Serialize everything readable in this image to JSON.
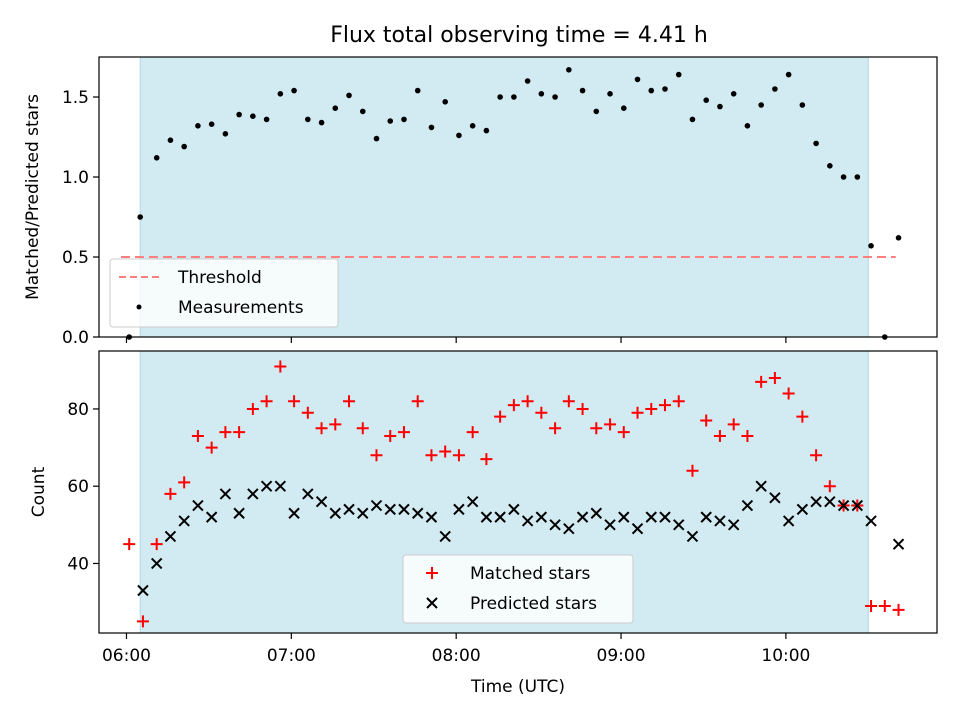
{
  "figure": {
    "title": "Flux total observing time = 4.41 h"
  },
  "colors": {
    "shade": "#add8e6",
    "matched": "#ff0000",
    "predicted": "#000000",
    "threshold": "#ff7f7f",
    "measure": "#000000"
  },
  "chart_data": [
    {
      "type": "scatter",
      "panel": "top",
      "ylabel": "Matched/Predicted stars",
      "ylim": [
        0,
        1.75
      ],
      "yticks": [
        {
          "v": 0,
          "label": "0.0"
        },
        {
          "v": 0.5,
          "label": "0.5"
        },
        {
          "v": 1.0,
          "label": "1.0"
        },
        {
          "v": 1.5,
          "label": "1.5"
        }
      ],
      "xlim": [
        "05:50",
        "10:55"
      ],
      "shaded_span": [
        "06:05",
        "10:30"
      ],
      "threshold": {
        "name": "Threshold",
        "value": 0.5,
        "x_range": [
          "05:58",
          "10:40"
        ]
      },
      "legend": {
        "placement": "lower-left",
        "entries": [
          "Threshold",
          "Measurements"
        ]
      },
      "series": [
        {
          "name": "Measurements",
          "x": [
            "06:01",
            "06:05",
            "06:11",
            "06:16",
            "06:21",
            "06:26",
            "06:31",
            "06:36",
            "06:41",
            "06:46",
            "06:51",
            "06:56",
            "07:01",
            "07:06",
            "07:11",
            "07:16",
            "07:21",
            "07:26",
            "07:31",
            "07:36",
            "07:41",
            "07:46",
            "07:51",
            "07:56",
            "08:01",
            "08:06",
            "08:11",
            "08:16",
            "08:21",
            "08:26",
            "08:31",
            "08:36",
            "08:41",
            "08:46",
            "08:51",
            "08:56",
            "09:01",
            "09:06",
            "09:11",
            "09:16",
            "09:21",
            "09:26",
            "09:31",
            "09:36",
            "09:41",
            "09:46",
            "09:51",
            "09:56",
            "10:01",
            "10:06",
            "10:11",
            "10:16",
            "10:21",
            "10:26",
            "10:31",
            "10:36",
            "10:41"
          ],
          "y": [
            0.0,
            0.75,
            1.12,
            1.23,
            1.19,
            1.32,
            1.33,
            1.27,
            1.39,
            1.38,
            1.36,
            1.52,
            1.54,
            1.36,
            1.34,
            1.43,
            1.51,
            1.41,
            1.24,
            1.35,
            1.36,
            1.54,
            1.31,
            1.47,
            1.26,
            1.32,
            1.29,
            1.5,
            1.5,
            1.6,
            1.52,
            1.5,
            1.67,
            1.54,
            1.41,
            1.52,
            1.43,
            1.61,
            1.54,
            1.55,
            1.64,
            1.36,
            1.48,
            1.44,
            1.52,
            1.32,
            1.45,
            1.55,
            1.64,
            1.45,
            1.21,
            1.07,
            1.0,
            1.0,
            0.57,
            0.0,
            0.62
          ]
        }
      ]
    },
    {
      "type": "scatter",
      "panel": "bottom",
      "ylabel": "Count",
      "xlabel": "Time (UTC)",
      "ylim": [
        22,
        95
      ],
      "yticks": [
        {
          "v": 40,
          "label": "40"
        },
        {
          "v": 60,
          "label": "60"
        },
        {
          "v": 80,
          "label": "80"
        }
      ],
      "xlim": [
        "05:50",
        "10:55"
      ],
      "xticks": [
        "06:00",
        "07:00",
        "08:00",
        "09:00",
        "10:00"
      ],
      "shaded_span": [
        "06:05",
        "10:30"
      ],
      "legend": {
        "placement": "lower-center",
        "entries": [
          "Matched stars",
          "Predicted stars"
        ]
      },
      "series": [
        {
          "name": "Matched stars",
          "marker": "plus",
          "x": [
            "06:01",
            "06:06",
            "06:11",
            "06:16",
            "06:21",
            "06:26",
            "06:31",
            "06:36",
            "06:41",
            "06:46",
            "06:51",
            "06:56",
            "07:01",
            "07:06",
            "07:11",
            "07:16",
            "07:21",
            "07:26",
            "07:31",
            "07:36",
            "07:41",
            "07:46",
            "07:51",
            "07:56",
            "08:01",
            "08:06",
            "08:11",
            "08:16",
            "08:21",
            "08:26",
            "08:31",
            "08:36",
            "08:41",
            "08:46",
            "08:51",
            "08:56",
            "09:01",
            "09:06",
            "09:11",
            "09:16",
            "09:21",
            "09:26",
            "09:31",
            "09:36",
            "09:41",
            "09:46",
            "09:51",
            "09:56",
            "10:01",
            "10:06",
            "10:11",
            "10:16",
            "10:21",
            "10:26",
            "10:31",
            "10:36",
            "10:41"
          ],
          "y": [
            45,
            25,
            45,
            58,
            61,
            73,
            70,
            74,
            74,
            80,
            82,
            91,
            82,
            79,
            75,
            76,
            82,
            75,
            68,
            73,
            74,
            82,
            68,
            69,
            68,
            74,
            67,
            78,
            81,
            82,
            79,
            75,
            82,
            80,
            75,
            76,
            74,
            79,
            80,
            81,
            82,
            64,
            77,
            73,
            76,
            73,
            87,
            88,
            84,
            78,
            68,
            60,
            55,
            55,
            29,
            29,
            28
          ]
        },
        {
          "name": "Predicted stars",
          "marker": "x",
          "x": [
            "06:06",
            "06:11",
            "06:16",
            "06:21",
            "06:26",
            "06:31",
            "06:36",
            "06:41",
            "06:46",
            "06:51",
            "06:56",
            "07:01",
            "07:06",
            "07:11",
            "07:16",
            "07:21",
            "07:26",
            "07:31",
            "07:36",
            "07:41",
            "07:46",
            "07:51",
            "07:56",
            "08:01",
            "08:06",
            "08:11",
            "08:16",
            "08:21",
            "08:26",
            "08:31",
            "08:36",
            "08:41",
            "08:46",
            "08:51",
            "08:56",
            "09:01",
            "09:06",
            "09:11",
            "09:16",
            "09:21",
            "09:26",
            "09:31",
            "09:36",
            "09:41",
            "09:46",
            "09:51",
            "09:56",
            "10:01",
            "10:06",
            "10:11",
            "10:16",
            "10:21",
            "10:26",
            "10:31",
            "10:41"
          ],
          "y": [
            33,
            40,
            47,
            51,
            55,
            52,
            58,
            53,
            58,
            60,
            60,
            53,
            58,
            56,
            53,
            54,
            53,
            55,
            54,
            54,
            53,
            52,
            47,
            54,
            56,
            52,
            52,
            54,
            51,
            52,
            50,
            49,
            52,
            53,
            50,
            52,
            49,
            52,
            52,
            50,
            47,
            52,
            51,
            50,
            55,
            60,
            57,
            51,
            54,
            56,
            56,
            55,
            55,
            51,
            45
          ]
        }
      ]
    }
  ]
}
